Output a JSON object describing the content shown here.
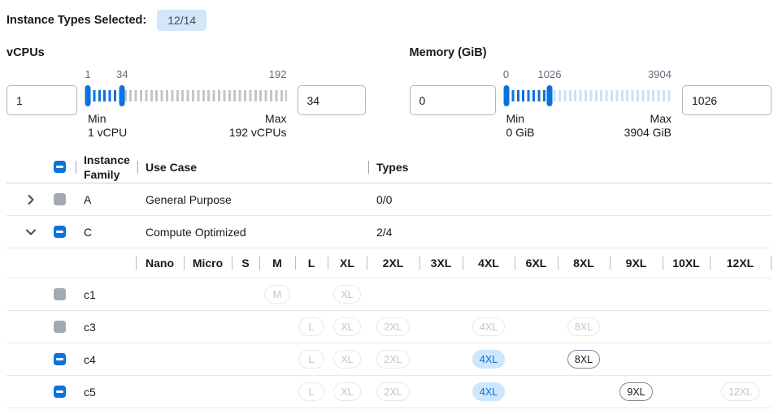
{
  "header": {
    "label": "Instance Types Selected:",
    "badge": "12/14"
  },
  "filters": {
    "vcpus": {
      "label": "vCPUs",
      "low_input": "1",
      "high_input": "34",
      "scale_low": "1",
      "scale_high": "34",
      "scale_max": "192",
      "min_label": "Min",
      "min_value_label": "1 vCPU",
      "max_label": "Max",
      "max_value_label": "192 vCPUs",
      "min": 1,
      "low": 1,
      "high": 34,
      "max": 192
    },
    "memory": {
      "label": "Memory (GiB)",
      "low_input": "0",
      "high_input": "1026",
      "scale_low": "0",
      "scale_high": "1026",
      "scale_max": "3904",
      "min_label": "Min",
      "min_value_label": "0 GiB",
      "max_label": "Max",
      "max_value_label": "3904 GiB",
      "min": 0,
      "low": 0,
      "high": 1026,
      "max": 3904
    }
  },
  "table": {
    "columns": {
      "family": "Instance Family",
      "use_case": "Use Case",
      "types": "Types"
    },
    "header_checkbox": "indeterminate",
    "size_columns": [
      "Nano",
      "Micro",
      "S",
      "M",
      "L",
      "XL",
      "2XL",
      "3XL",
      "4XL",
      "6XL",
      "8XL",
      "9XL",
      "10XL",
      "12XL"
    ],
    "families": [
      {
        "name": "A",
        "use_case": "General Purpose",
        "types": "0/0",
        "expanded": false,
        "checkbox": "disabled",
        "instances": []
      },
      {
        "name": "C",
        "use_case": "Compute Optimized",
        "types": "2/4",
        "expanded": true,
        "checkbox": "indeterminate",
        "instances": [
          {
            "name": "c1",
            "checkbox": "disabled",
            "sizes": {
              "M": "disabled",
              "XL": "disabled"
            }
          },
          {
            "name": "c3",
            "checkbox": "disabled",
            "sizes": {
              "L": "disabled",
              "XL": "disabled",
              "2XL": "disabled",
              "4XL": "disabled",
              "8XL": "disabled"
            }
          },
          {
            "name": "c4",
            "checkbox": "indeterminate",
            "sizes": {
              "L": "disabled",
              "XL": "disabled",
              "2XL": "disabled",
              "4XL": "selected",
              "8XL": "available"
            }
          },
          {
            "name": "c5",
            "checkbox": "indeterminate",
            "sizes": {
              "L": "disabled",
              "XL": "disabled",
              "2XL": "disabled",
              "4XL": "selected",
              "9XL": "available",
              "12XL": "disabled"
            }
          }
        ]
      }
    ]
  },
  "icons": {
    "collapsed": "chevron-right",
    "expanded": "chevron-down",
    "checkbox_glyph": "minus"
  },
  "colors": {
    "accent": "#0e72dc",
    "badge_bg": "#d3e7f9",
    "badge_text": "#414d5c",
    "text_primary": "#16191f",
    "text_secondary": "#5f6b7a",
    "input_border": "#aab7c4",
    "tick_gray": "#c1c6cd",
    "tick_blue_light": "#cfe0f2",
    "selected_pill_bg": "#cfe5fb",
    "selected_pill_text": "#0972d3",
    "disabled_pill_border": "#e7e9ec",
    "disabled_pill_text": "#c0c5cc",
    "available_pill_border": "#7d8998",
    "checkbox_disabled": "#a4aab2",
    "row_border": "#e6e8eb",
    "header_border": "#ccd1d8",
    "separator": "#9aa4b1",
    "separator_light": "#b3bcc7"
  }
}
